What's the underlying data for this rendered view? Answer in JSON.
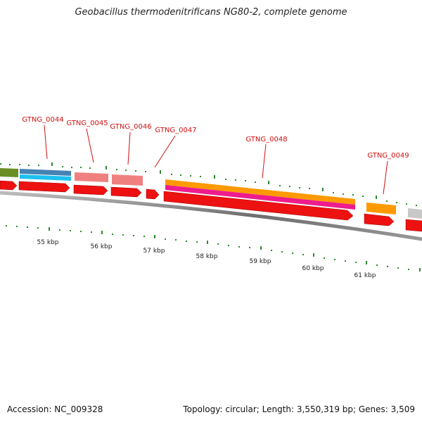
{
  "title": "Geobacillus thermodenitrificans NG80-2, complete genome",
  "footer": {
    "accession": "Accession: NC_009328",
    "summary": "Topology: circular; Length: 3,550,319 bp; Genes: 3,509"
  },
  "colors": {
    "cds": "#ee1111",
    "label": "#d01010",
    "tick": "#2e8b2e",
    "backbone": "#777777"
  },
  "genes": [
    {
      "id": "g-left",
      "label": ""
    },
    {
      "id": "g44",
      "label": "GTNG_0044"
    },
    {
      "id": "g45",
      "label": "GTNG_0045"
    },
    {
      "id": "g46",
      "label": "GTNG_0046"
    },
    {
      "id": "g47",
      "label": "GTNG_0047"
    },
    {
      "id": "g48",
      "label": "GTNG_0048"
    },
    {
      "id": "g49",
      "label": "GTNG_0049"
    },
    {
      "id": "g-right",
      "label": ""
    }
  ],
  "scale_labels": [
    "55 kbp",
    "56 kbp",
    "57 kbp",
    "58 kbp",
    "59 kbp",
    "60 kbp",
    "61 kbp"
  ]
}
